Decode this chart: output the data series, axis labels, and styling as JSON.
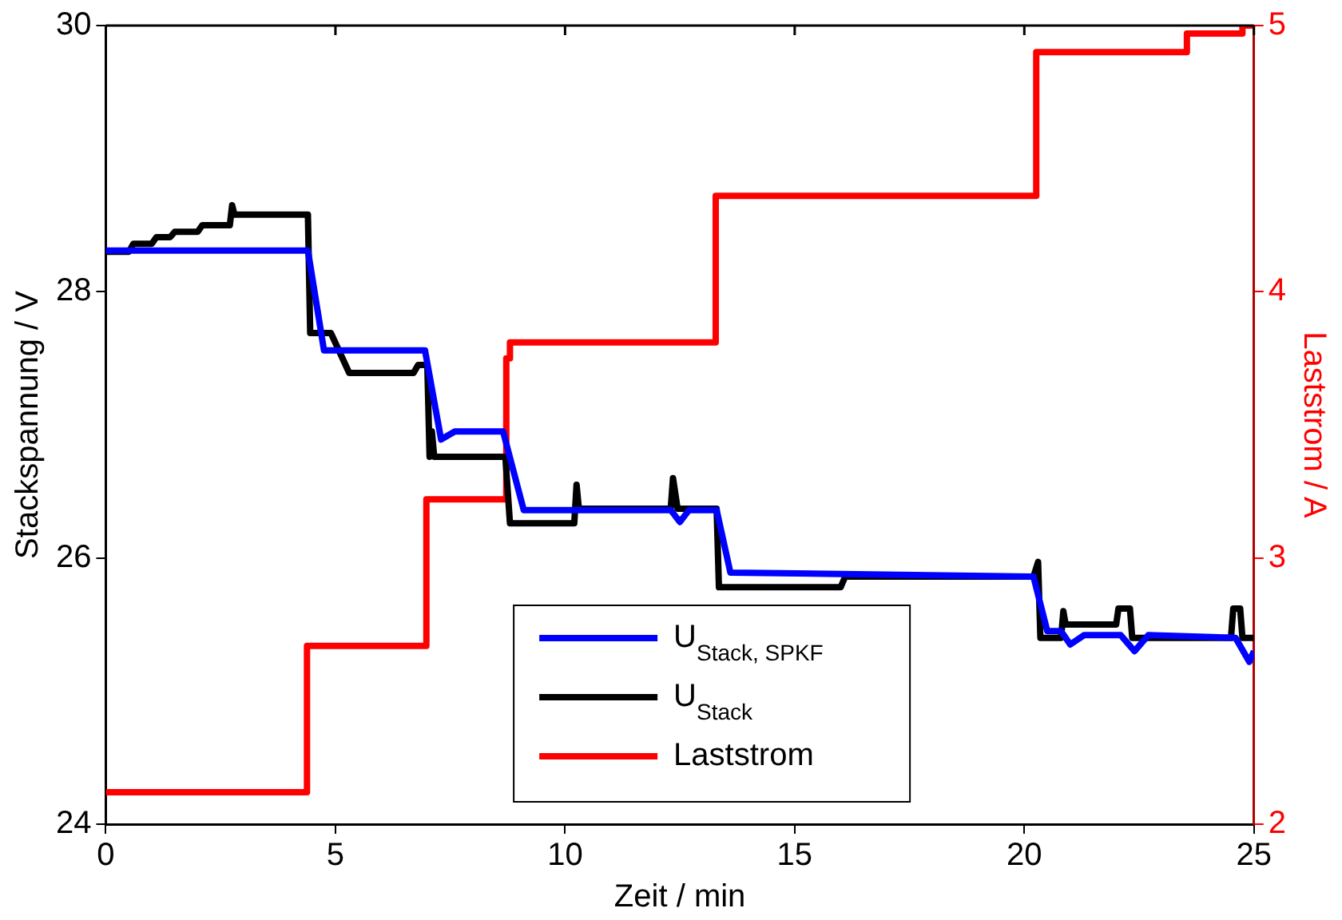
{
  "chart_data": {
    "type": "line",
    "xlabel": "Zeit / min",
    "ylabel": "Stackspannung / V",
    "y2label": "Laststrom / A",
    "xlim": [
      0,
      25
    ],
    "xticks": [
      0,
      5,
      10,
      15,
      20,
      25
    ],
    "ylim": [
      24,
      30
    ],
    "yticks": [
      24,
      26,
      28,
      30
    ],
    "y2lim": [
      2,
      5
    ],
    "y2ticks": [
      2,
      3,
      4,
      5
    ],
    "legend": "bottom",
    "marker": "none",
    "line_style": "solid",
    "series": [
      {
        "name": "U$_{Stack, SPKF}$",
        "color": "#0000ff",
        "x": [
          0,
          4.4,
          4.75,
          6.95,
          7.3,
          7.6,
          8.65,
          9.1,
          12.3,
          12.5,
          12.7,
          13.3,
          13.6,
          20.2,
          20.5,
          20.8,
          21.0,
          21.3,
          22.1,
          22.4,
          22.7,
          24.6,
          24.9,
          25
        ],
        "values": [
          28.31,
          28.31,
          27.56,
          27.56,
          26.89,
          26.95,
          26.95,
          26.36,
          26.36,
          26.27,
          26.36,
          26.36,
          25.89,
          25.86,
          25.45,
          25.45,
          25.35,
          25.42,
          25.42,
          25.3,
          25.42,
          25.4,
          25.22,
          25.3
        ]
      },
      {
        "name": "U$_{Stack}$",
        "color": "#000000",
        "x": [
          0,
          0.5,
          0.6,
          1.0,
          1.1,
          1.4,
          1.5,
          2.0,
          2.1,
          2.7,
          2.75,
          2.8,
          4.4,
          4.45,
          4.9,
          5.3,
          6.7,
          6.8,
          7.0,
          7.05,
          7.1,
          7.15,
          8.7,
          8.8,
          10.2,
          10.25,
          10.3,
          12.3,
          12.35,
          12.45,
          13.3,
          13.35,
          16.0,
          16.1,
          20.2,
          20.3,
          20.35,
          20.8,
          20.85,
          20.9,
          22.0,
          22.05,
          22.3,
          22.35,
          24.5,
          24.55,
          24.7,
          24.75,
          25
        ],
        "values": [
          28.3,
          28.3,
          28.36,
          28.36,
          28.41,
          28.41,
          28.45,
          28.45,
          28.5,
          28.5,
          28.65,
          28.58,
          28.58,
          27.69,
          27.69,
          27.39,
          27.39,
          27.45,
          27.45,
          26.76,
          26.95,
          26.76,
          26.76,
          26.26,
          26.26,
          26.55,
          26.37,
          26.37,
          26.6,
          26.37,
          26.37,
          25.78,
          25.78,
          25.86,
          25.86,
          25.97,
          25.4,
          25.4,
          25.6,
          25.5,
          25.5,
          25.62,
          25.62,
          25.4,
          25.4,
          25.62,
          25.62,
          25.4,
          25.4
        ]
      },
      {
        "name": "Laststrom",
        "color": "#ff0000",
        "type": "step",
        "axis": "y2",
        "x": [
          0,
          4.38,
          6.98,
          8.72,
          8.8,
          13.28,
          20.26,
          23.54,
          24.75,
          25
        ],
        "values": [
          2.12,
          2.67,
          3.22,
          3.75,
          3.81,
          4.36,
          4.9,
          4.97,
          5.0,
          5.0
        ]
      }
    ]
  }
}
